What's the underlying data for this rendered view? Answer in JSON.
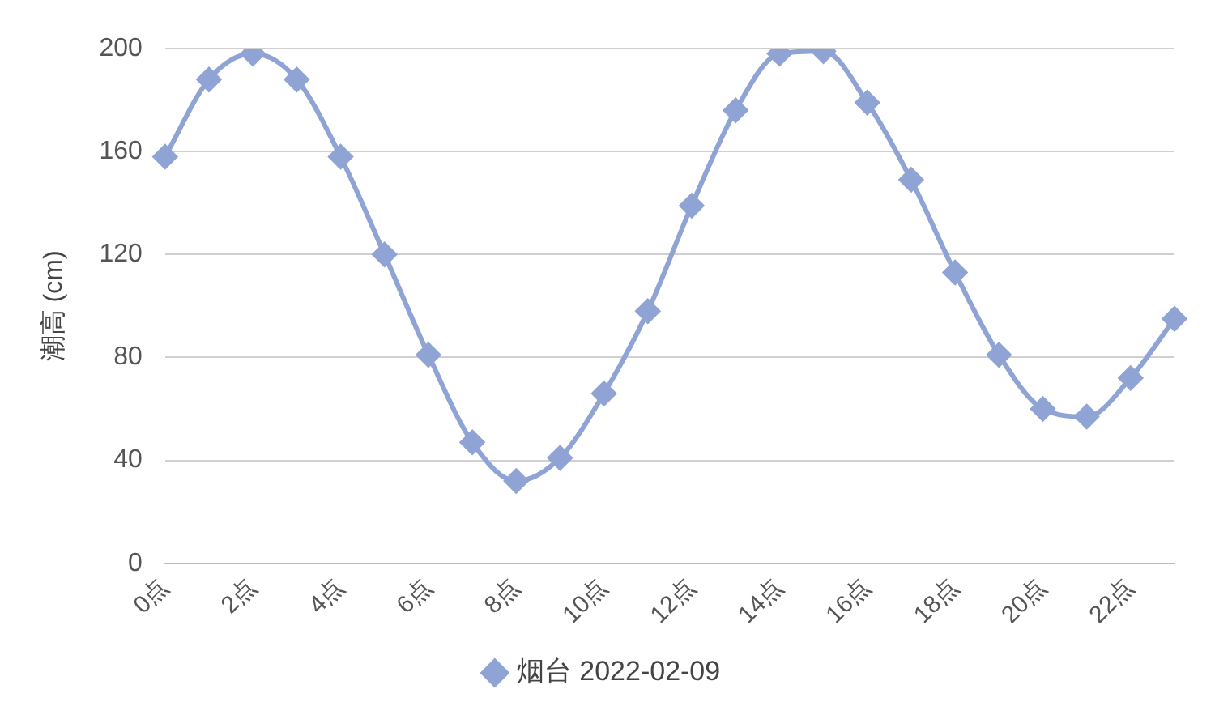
{
  "chart_data": {
    "type": "line",
    "ylabel": "潮高 (cm)",
    "categories": [
      "0点",
      null,
      "2点",
      null,
      "4点",
      null,
      "6点",
      null,
      "8点",
      null,
      "10点",
      null,
      "12点",
      null,
      "14点",
      null,
      "16点",
      null,
      "18点",
      null,
      "20点",
      null,
      "22点",
      null
    ],
    "series": [
      {
        "name": "烟台 2022-02-09",
        "color": "#8fa3d5",
        "values": [
          158,
          188,
          198,
          188,
          158,
          120,
          81,
          47,
          32,
          41,
          66,
          98,
          139,
          176,
          198,
          199,
          179,
          149,
          113,
          81,
          60,
          57,
          72,
          95
        ]
      }
    ],
    "ylim": [
      0,
      200
    ],
    "yticks": [
      0,
      40,
      80,
      120,
      160,
      200
    ],
    "grid": "y",
    "legend": "bottom",
    "marker": "diamond",
    "line_style": "solid"
  }
}
